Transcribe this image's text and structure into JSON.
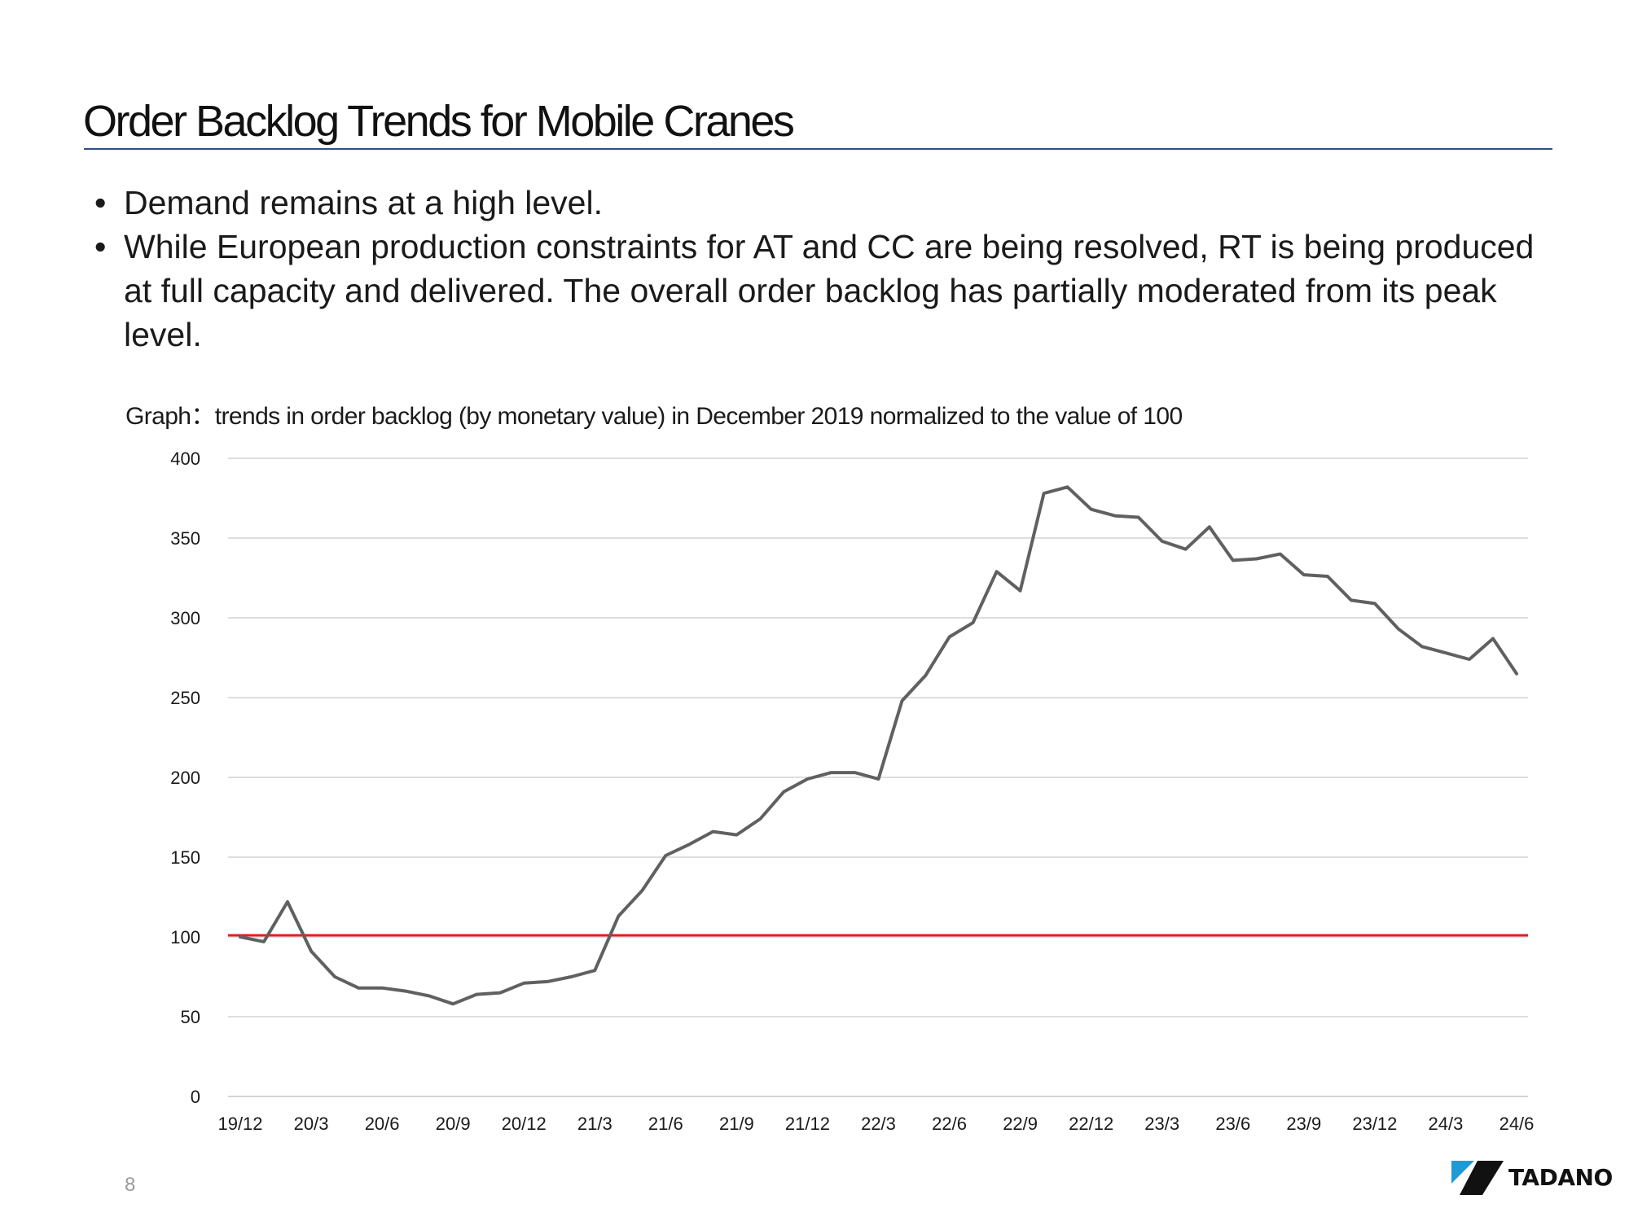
{
  "page": {
    "title": "Order Backlog Trends for Mobile Cranes",
    "bullets": [
      "Demand remains at a high level.",
      "While European production constraints for AT and CC are being resolved, RT is being produced at full capacity and delivered. The overall order backlog has partially moderated from its peak level."
    ],
    "bullet_symbol": "•",
    "page_number": "8",
    "logo_text": "TADANO",
    "colors": {
      "title_rule": "#2f4e8c",
      "logo_blue": "#1e9ad6",
      "logo_black": "#111111"
    }
  },
  "chart_data": {
    "type": "line",
    "title": "Graph：trends in order backlog (by monetary value) in December 2019 normalized to the value of 100",
    "xlabel": "",
    "ylabel": "",
    "ylim": [
      0,
      400
    ],
    "yticks": [
      0,
      50,
      100,
      150,
      200,
      250,
      300,
      350,
      400
    ],
    "grid": true,
    "legend": "none",
    "x_tick_labels": [
      "19/12",
      "20/3",
      "20/6",
      "20/9",
      "20/12",
      "21/3",
      "21/6",
      "21/9",
      "21/12",
      "22/3",
      "22/6",
      "22/9",
      "22/12",
      "23/3",
      "23/6",
      "23/9",
      "23/12",
      "24/3",
      "24/6"
    ],
    "x_period": "monthly, 19/12 to 24/6",
    "series": [
      {
        "color": "#606060",
        "values": [
          100,
          97,
          122,
          91,
          75,
          68,
          68,
          66,
          63,
          58,
          64,
          65,
          71,
          72,
          75,
          79,
          113,
          129,
          151,
          158,
          166,
          164,
          174,
          191,
          199,
          203,
          203,
          199,
          248,
          264,
          288,
          297,
          329,
          317,
          378,
          382,
          368,
          364,
          363,
          348,
          343,
          357,
          336,
          337,
          340,
          327,
          326,
          311,
          309,
          293,
          282,
          278,
          274,
          287,
          265
        ]
      }
    ],
    "reference_line": {
      "value": 101,
      "color": "#e0201b"
    }
  }
}
